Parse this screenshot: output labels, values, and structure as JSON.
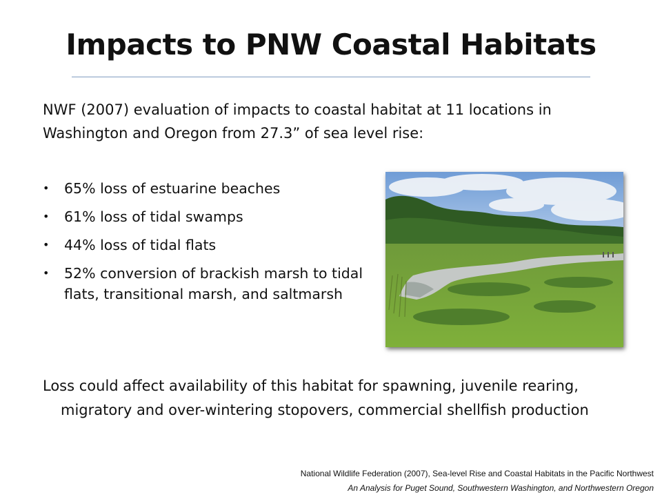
{
  "slide": {
    "title": "Impacts to PNW Coastal Habitats",
    "intro": "NWF (2007) evaluation of impacts to coastal habitat at 11 locations in Washington and Oregon from 27.3” of sea level rise:",
    "bullet_symbol": "•",
    "bullets": [
      "65% loss of estuarine beaches",
      "61% loss of tidal swamps",
      "44% loss of tidal flats",
      "52% conversion of brackish marsh to tidal flats, transitional marsh, and saltmarsh"
    ],
    "outro": "Loss could affect availability of this habitat for spawning, juvenile rearing, migratory and over-wintering stopovers,  commercial shellfish production",
    "citation": {
      "line1": "National Wildlife Federation (2007),  Sea-level Rise and Coastal Habitats in the Pacific Northwest",
      "line2": "An Analysis for Puget Sound, Southwestern Washington, and Northwestern  Oregon"
    }
  },
  "colors": {
    "title_rule": "#7f9cc0",
    "text": "#111111"
  }
}
